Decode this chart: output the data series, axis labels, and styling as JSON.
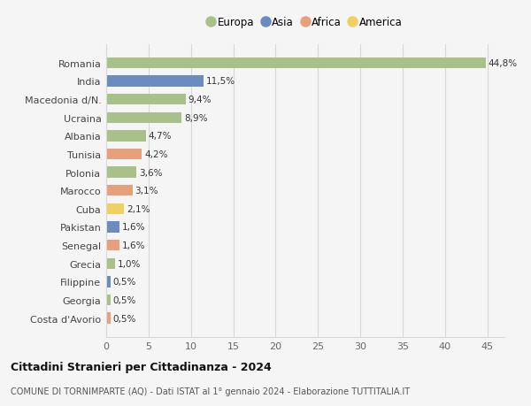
{
  "countries": [
    "Romania",
    "India",
    "Macedonia d/N.",
    "Ucraina",
    "Albania",
    "Tunisia",
    "Polonia",
    "Marocco",
    "Cuba",
    "Pakistan",
    "Senegal",
    "Grecia",
    "Filippine",
    "Georgia",
    "Costa d'Avorio"
  ],
  "values": [
    44.8,
    11.5,
    9.4,
    8.9,
    4.7,
    4.2,
    3.6,
    3.1,
    2.1,
    1.6,
    1.6,
    1.0,
    0.5,
    0.5,
    0.5
  ],
  "labels": [
    "44,8%",
    "11,5%",
    "9,4%",
    "8,9%",
    "4,7%",
    "4,2%",
    "3,6%",
    "3,1%",
    "2,1%",
    "1,6%",
    "1,6%",
    "1,0%",
    "0,5%",
    "0,5%",
    "0,5%"
  ],
  "continents": [
    "Europa",
    "Asia",
    "Europa",
    "Europa",
    "Europa",
    "Africa",
    "Europa",
    "Africa",
    "America",
    "Asia",
    "Africa",
    "Europa",
    "Asia",
    "Europa",
    "Africa"
  ],
  "colors": {
    "Europa": "#a8c08a",
    "Asia": "#6b8cbf",
    "Africa": "#e8a07c",
    "America": "#f0d060"
  },
  "legend_order": [
    "Europa",
    "Asia",
    "Africa",
    "America"
  ],
  "title": "Cittadini Stranieri per Cittadinanza - 2024",
  "subtitle": "COMUNE DI TORNIMPARTE (AQ) - Dati ISTAT al 1° gennaio 2024 - Elaborazione TUTTITALIA.IT",
  "xlim": [
    0,
    47
  ],
  "xticks": [
    0,
    5,
    10,
    15,
    20,
    25,
    30,
    35,
    40,
    45
  ],
  "background_color": "#f5f5f5",
  "grid_color": "#d8d8d8",
  "bar_height": 0.6
}
